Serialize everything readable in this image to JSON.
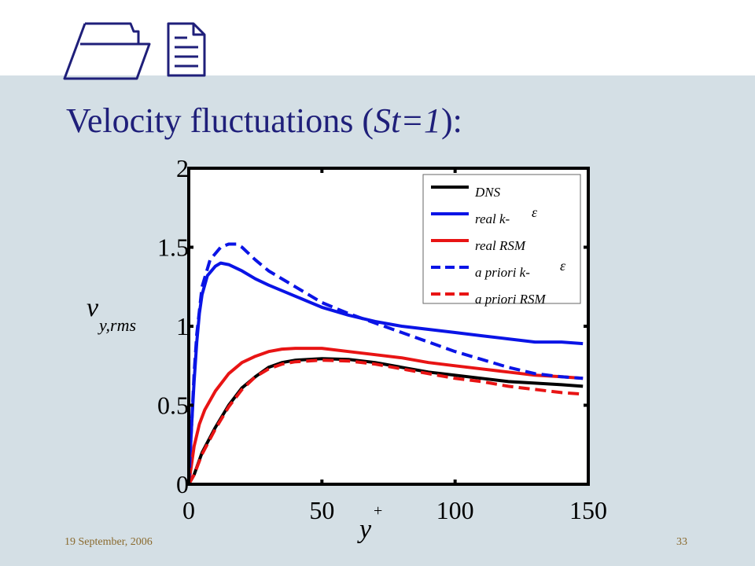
{
  "slide": {
    "title_main": "Velocity fluctuations (",
    "title_italic": "St=1",
    "title_end": "):",
    "footer_date": "19 September, 2006",
    "page_number": "33"
  },
  "chart_data": {
    "type": "line",
    "xlabel": "y",
    "xlabel_superscript": "+",
    "ylabel": "v",
    "ylabel_subscript": "y,rms",
    "xlim": [
      0,
      150
    ],
    "ylim": [
      0,
      2
    ],
    "x_ticks": [
      0,
      50,
      100,
      150
    ],
    "x_tick_labels": [
      "0",
      "50",
      "100",
      "150"
    ],
    "y_ticks": [
      0,
      0.5,
      1,
      1.5,
      2
    ],
    "y_tick_labels": [
      "0",
      "0.5",
      "1",
      "1.5",
      "2"
    ],
    "grid": false,
    "legend_position": "top-right",
    "series": [
      {
        "name": "DNS",
        "name_symbol": "",
        "color": "#000000",
        "dash": "solid",
        "x": [
          0,
          2,
          5,
          10,
          15,
          20,
          25,
          30,
          35,
          40,
          50,
          60,
          70,
          80,
          90,
          100,
          110,
          120,
          130,
          140,
          148
        ],
        "y": [
          0,
          0.06,
          0.2,
          0.36,
          0.5,
          0.61,
          0.68,
          0.74,
          0.77,
          0.785,
          0.795,
          0.79,
          0.77,
          0.74,
          0.71,
          0.69,
          0.67,
          0.65,
          0.64,
          0.63,
          0.62
        ]
      },
      {
        "name": "real k- ",
        "name_symbol": "ε",
        "color": "#0a14e6",
        "dash": "solid",
        "x": [
          0,
          1,
          2,
          3,
          4,
          5,
          7,
          10,
          12,
          15,
          20,
          25,
          30,
          40,
          50,
          60,
          70,
          80,
          90,
          100,
          110,
          120,
          130,
          140,
          148
        ],
        "y": [
          0,
          0.35,
          0.65,
          0.9,
          1.08,
          1.2,
          1.32,
          1.38,
          1.4,
          1.39,
          1.35,
          1.3,
          1.26,
          1.19,
          1.12,
          1.07,
          1.03,
          1.0,
          0.98,
          0.96,
          0.94,
          0.92,
          0.9,
          0.9,
          0.89
        ]
      },
      {
        "name": "real RSM",
        "name_symbol": "",
        "color": "#e81414",
        "dash": "solid",
        "x": [
          0,
          1,
          2,
          4,
          6,
          10,
          15,
          20,
          25,
          30,
          35,
          40,
          45,
          50,
          60,
          70,
          80,
          90,
          100,
          110,
          120,
          130,
          140,
          148
        ],
        "y": [
          0,
          0.12,
          0.24,
          0.38,
          0.47,
          0.59,
          0.7,
          0.77,
          0.81,
          0.84,
          0.855,
          0.86,
          0.86,
          0.86,
          0.84,
          0.82,
          0.8,
          0.77,
          0.75,
          0.73,
          0.71,
          0.69,
          0.68,
          0.67
        ]
      },
      {
        "name": "a priori k- ",
        "name_symbol": "ε",
        "color": "#0a14e6",
        "dash": "dashed",
        "x": [
          0,
          1,
          2,
          3,
          5,
          8,
          12,
          15,
          18,
          20,
          25,
          30,
          40,
          50,
          60,
          70,
          80,
          90,
          100,
          110,
          120,
          130,
          140,
          148
        ],
        "y": [
          0,
          0.35,
          0.7,
          0.95,
          1.25,
          1.42,
          1.5,
          1.52,
          1.52,
          1.5,
          1.42,
          1.35,
          1.25,
          1.15,
          1.08,
          1.02,
          0.96,
          0.9,
          0.84,
          0.79,
          0.74,
          0.7,
          0.68,
          0.67
        ]
      },
      {
        "name": "a priori RSM",
        "name_symbol": "",
        "color": "#e81414",
        "dash": "dashed",
        "x": [
          0,
          2,
          5,
          10,
          15,
          20,
          25,
          30,
          35,
          40,
          50,
          60,
          70,
          80,
          90,
          100,
          110,
          120,
          130,
          140,
          148
        ],
        "y": [
          0,
          0.06,
          0.19,
          0.35,
          0.49,
          0.6,
          0.68,
          0.73,
          0.76,
          0.775,
          0.785,
          0.78,
          0.76,
          0.73,
          0.7,
          0.67,
          0.65,
          0.62,
          0.6,
          0.58,
          0.57
        ]
      }
    ]
  }
}
